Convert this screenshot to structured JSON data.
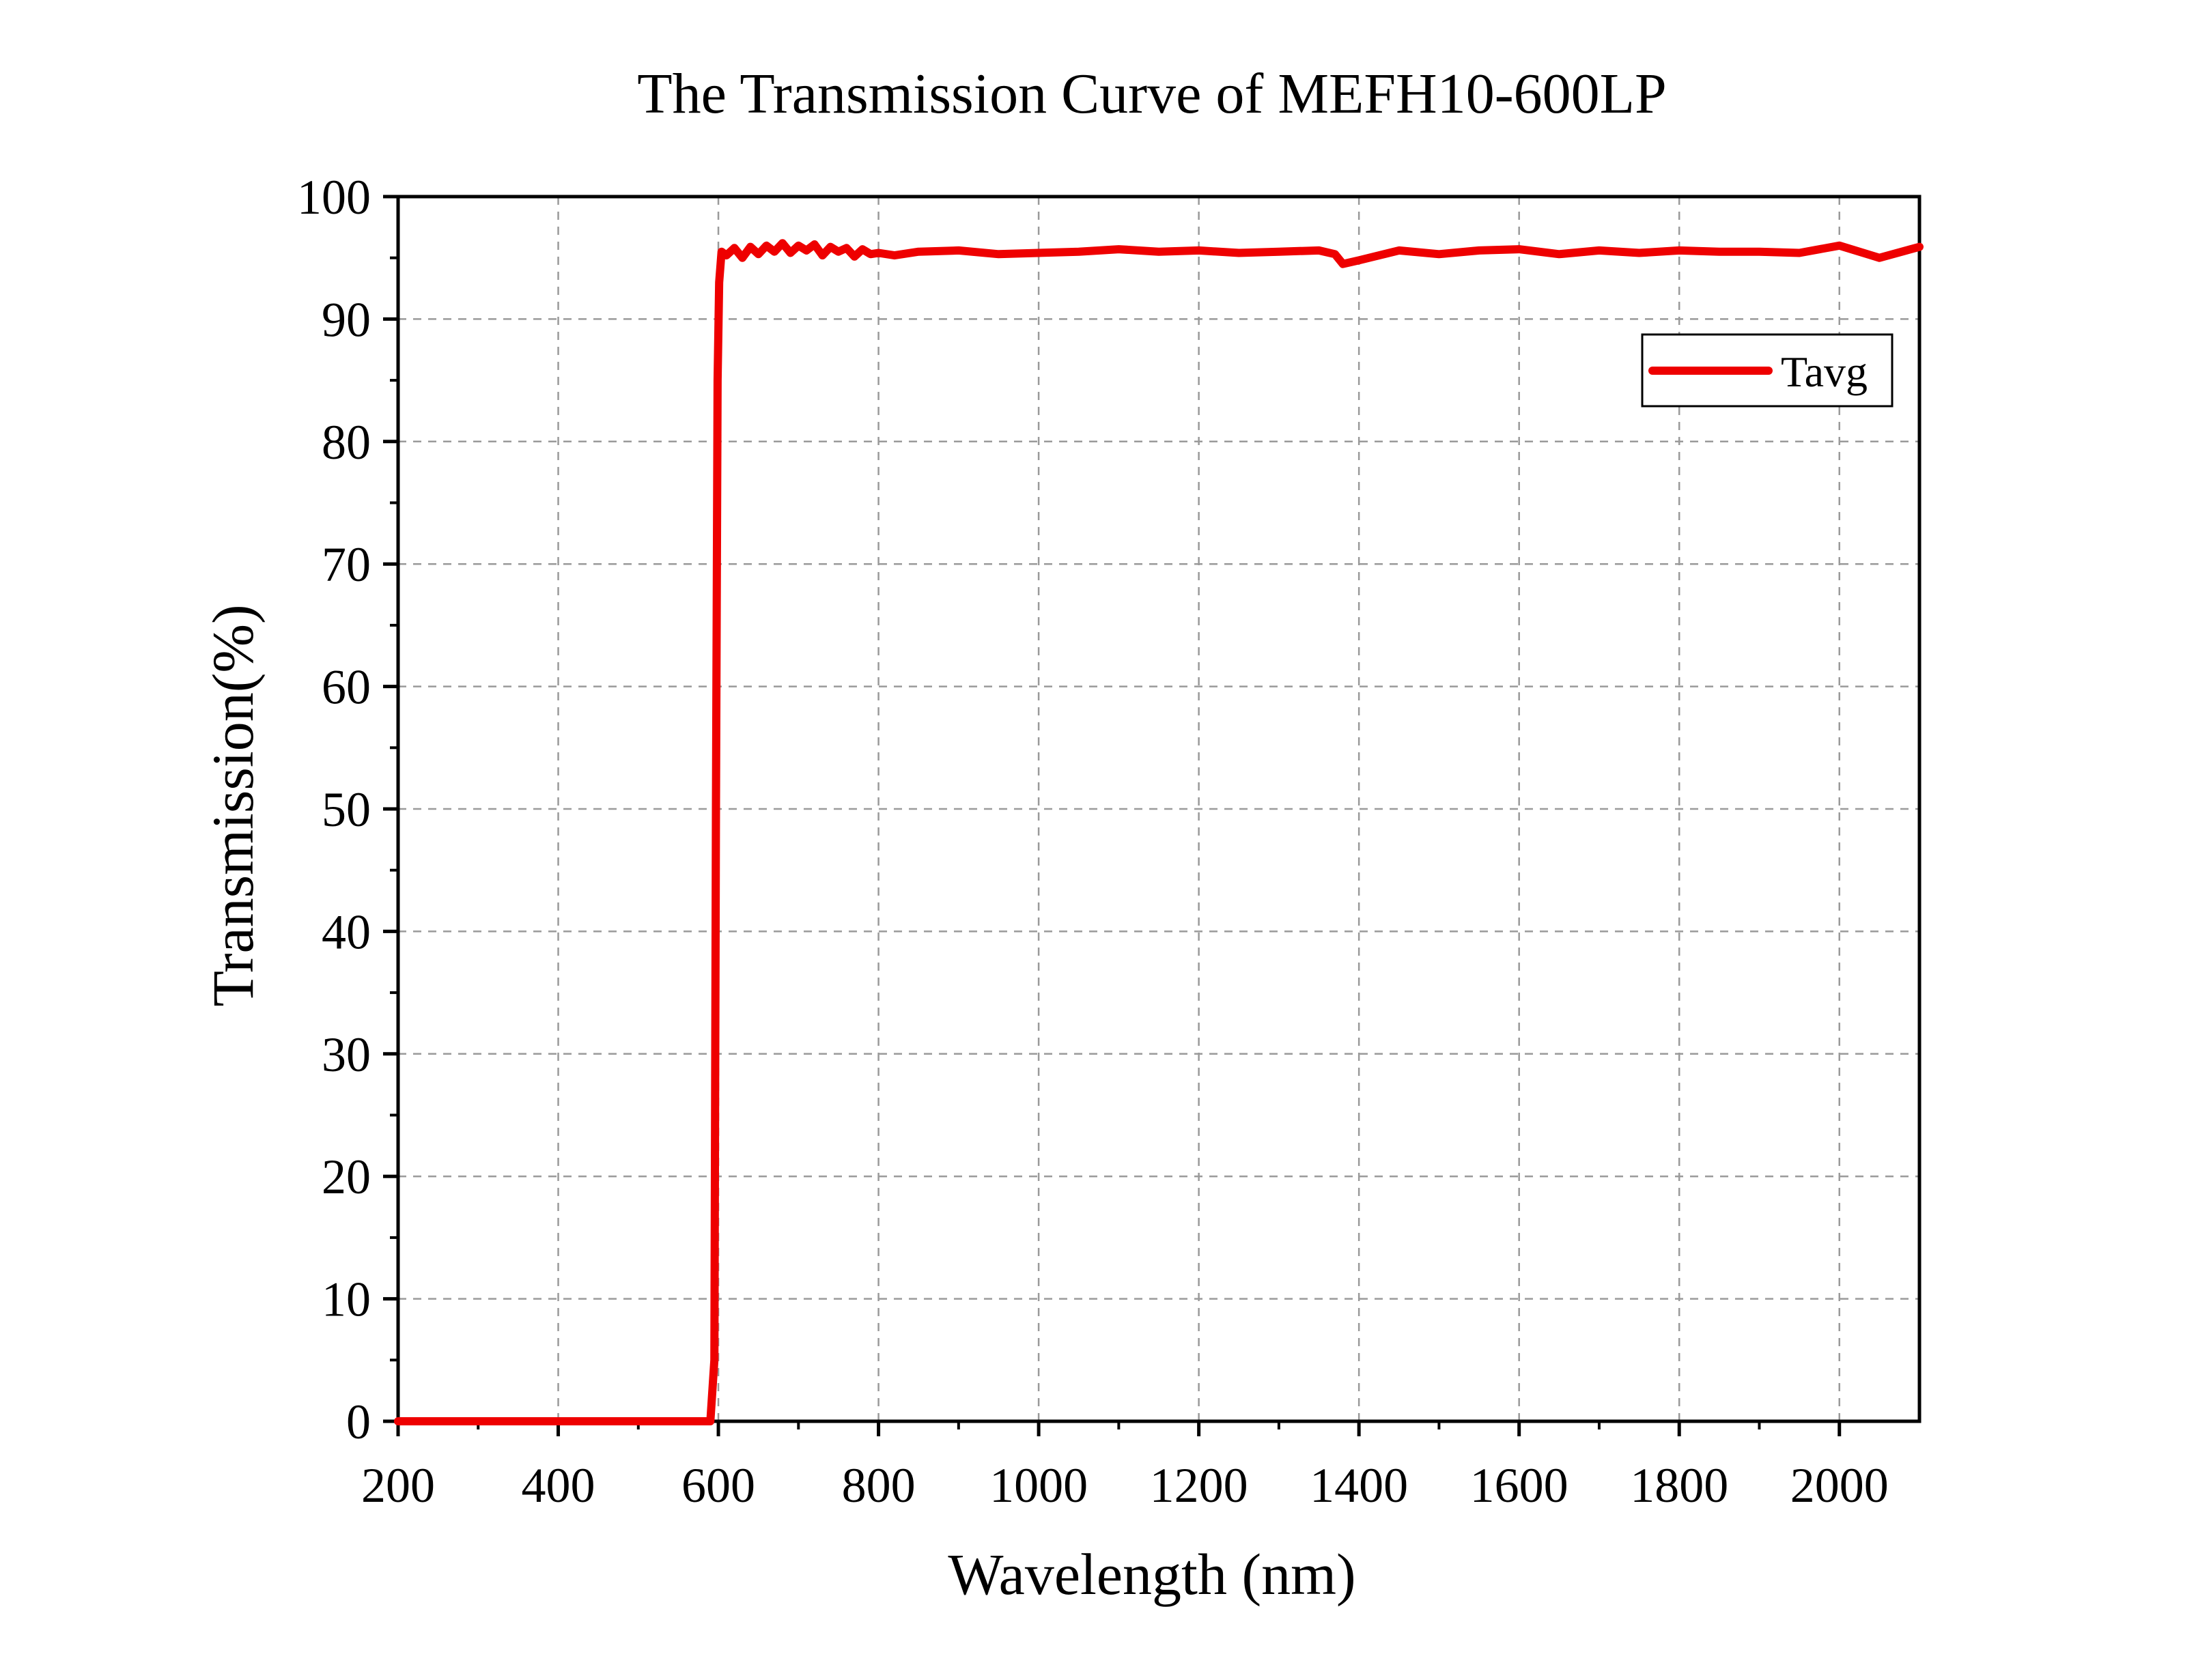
{
  "chart_data": {
    "type": "line",
    "title": "The Transmission Curve of MEFH10-600LP",
    "xlabel": "Wavelength (nm)",
    "ylabel": "Transmission(%)",
    "xlim": [
      200,
      2100
    ],
    "ylim": [
      0,
      100
    ],
    "xticks": [
      200,
      400,
      600,
      800,
      1000,
      1200,
      1400,
      1600,
      1800,
      2000
    ],
    "yticks": [
      0,
      10,
      20,
      30,
      40,
      50,
      60,
      70,
      80,
      90,
      100
    ],
    "x_tick_labels": [
      "200",
      "400",
      "600",
      "800",
      "1000",
      "1200",
      "1400",
      "1600",
      "1800",
      "2000"
    ],
    "y_tick_labels": [
      "0",
      "10",
      "20",
      "30",
      "40",
      "50",
      "60",
      "70",
      "80",
      "90",
      "100"
    ],
    "grid": true,
    "legend_position": "top-right",
    "series": [
      {
        "name": "Tavg",
        "color": "#ee0000",
        "x": [
          200,
          400,
          590,
          595,
          597,
          599,
          601,
          604,
          610,
          620,
          630,
          640,
          650,
          660,
          670,
          680,
          690,
          700,
          710,
          720,
          730,
          740,
          750,
          760,
          770,
          780,
          790,
          800,
          820,
          850,
          900,
          950,
          1000,
          1050,
          1100,
          1150,
          1200,
          1250,
          1300,
          1350,
          1370,
          1380,
          1400,
          1450,
          1500,
          1550,
          1600,
          1650,
          1700,
          1750,
          1800,
          1850,
          1900,
          1950,
          2000,
          2050,
          2100
        ],
        "y": [
          0,
          0,
          0,
          5,
          50,
          85,
          93,
          95.5,
          95.2,
          95.8,
          95.0,
          95.9,
          95.3,
          96.0,
          95.5,
          96.2,
          95.4,
          96.0,
          95.6,
          96.1,
          95.2,
          95.9,
          95.5,
          95.8,
          95.1,
          95.7,
          95.3,
          95.4,
          95.2,
          95.5,
          95.6,
          95.3,
          95.4,
          95.5,
          95.7,
          95.5,
          95.6,
          95.4,
          95.5,
          95.6,
          95.3,
          94.5,
          94.8,
          95.6,
          95.3,
          95.6,
          95.7,
          95.3,
          95.6,
          95.4,
          95.6,
          95.5,
          95.5,
          95.4,
          96.0,
          95.0,
          95.9
        ]
      }
    ]
  }
}
